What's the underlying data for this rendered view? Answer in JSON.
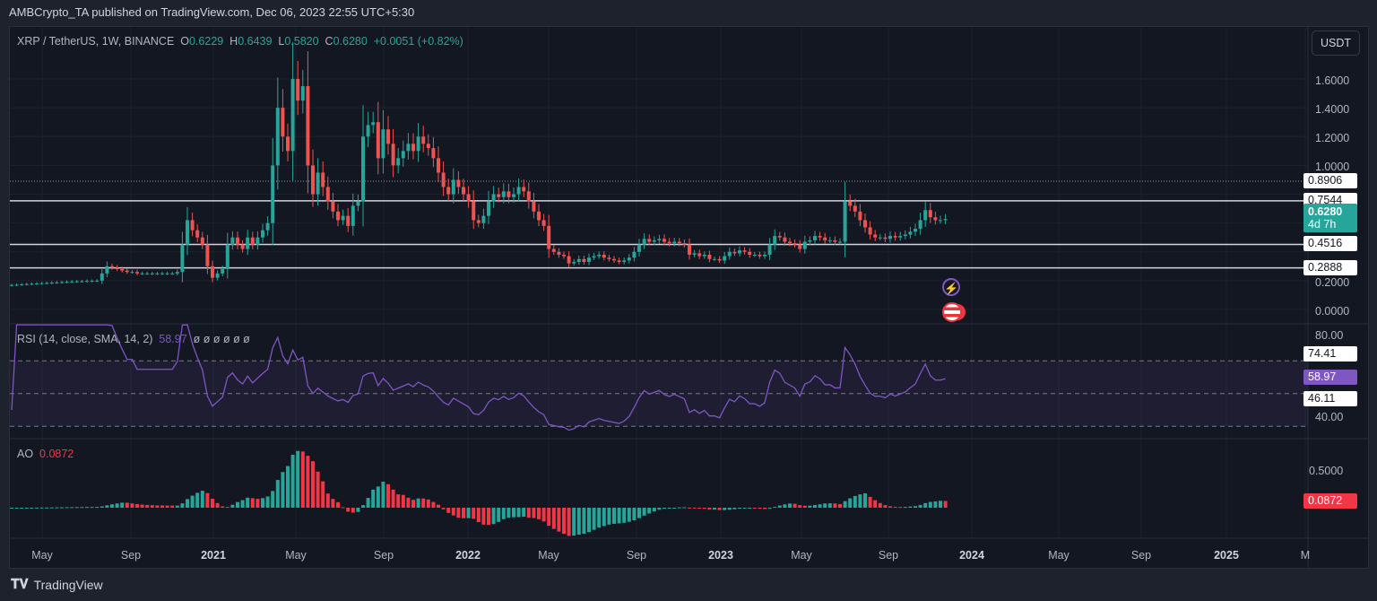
{
  "header": {
    "published": "AMBCrypto_TA published on TradingView.com, Dec 06, 2023 22:55 UTC+5:30"
  },
  "symbol": {
    "name": "XRP / TetherUS, 1W, BINANCE",
    "o_label": "O",
    "o": "0.6229",
    "h_label": "H",
    "h": "0.6439",
    "l_label": "L",
    "l": "0.5820",
    "c_label": "C",
    "c": "0.6280",
    "change": "+0.0051 (+0.82%)"
  },
  "currency_button": "USDT",
  "price_axis": {
    "ticks": [
      "1.6000",
      "1.4000",
      "1.2000",
      "1.0000",
      "0.2000",
      "0.0000"
    ],
    "tick_values": [
      1.6,
      1.4,
      1.2,
      1.0,
      0.2,
      0.0
    ]
  },
  "levels": [
    {
      "value": 0.8906,
      "label": "0.8906",
      "style": "dotted"
    },
    {
      "value": 0.7544,
      "label": "0.7544",
      "style": "solid"
    },
    {
      "value": 0.4516,
      "label": "0.4516",
      "style": "solid"
    },
    {
      "value": 0.2888,
      "label": "0.2888",
      "style": "solid"
    }
  ],
  "last_price": {
    "value": 0.628,
    "label": "0.6280",
    "countdown": "4d 7h"
  },
  "rsi": {
    "legend": "RSI (14, close, SMA, 14, 2)",
    "value": "58.97",
    "nulls": "ø ø ø ø ø ø",
    "ticks": [
      "80.00",
      "40.00"
    ],
    "band_top_label": "74.41",
    "band_bottom_label": "46.11"
  },
  "ao": {
    "legend": "AO",
    "value": "0.0872",
    "ticks": [
      "0.5000",
      "0.0000"
    ]
  },
  "time_axis": [
    "May",
    "Sep",
    "2021",
    "May",
    "Sep",
    "2022",
    "May",
    "Sep",
    "2023",
    "May",
    "Sep",
    "2024",
    "May",
    "Sep",
    "2025",
    "M"
  ],
  "footer": {
    "brand": "TradingView"
  },
  "colors": {
    "up": "#26a69a",
    "down": "#ef5350",
    "rsi": "#7e57c2",
    "ao_red": "#f23645"
  },
  "chart_data": {
    "type": "candlestick",
    "interval": "1W",
    "closes": [
      0.17,
      0.172,
      0.174,
      0.176,
      0.178,
      0.18,
      0.182,
      0.184,
      0.186,
      0.188,
      0.19,
      0.192,
      0.194,
      0.195,
      0.196,
      0.198,
      0.199,
      0.2,
      0.25,
      0.3,
      0.29,
      0.28,
      0.27,
      0.26,
      0.26,
      0.25,
      0.25,
      0.25,
      0.25,
      0.25,
      0.25,
      0.25,
      0.25,
      0.26,
      0.45,
      0.62,
      0.55,
      0.5,
      0.45,
      0.3,
      0.22,
      0.25,
      0.28,
      0.45,
      0.5,
      0.45,
      0.42,
      0.5,
      0.45,
      0.5,
      0.55,
      0.6,
      1.0,
      1.4,
      1.2,
      1.1,
      1.6,
      1.45,
      1.55,
      1.0,
      0.8,
      0.95,
      0.85,
      0.75,
      0.68,
      0.62,
      0.65,
      0.58,
      0.72,
      0.75,
      1.2,
      1.28,
      1.3,
      1.05,
      1.25,
      1.15,
      1.0,
      1.05,
      1.1,
      1.15,
      1.1,
      1.2,
      1.15,
      1.12,
      1.05,
      0.95,
      0.85,
      0.8,
      0.9,
      0.85,
      0.8,
      0.75,
      0.62,
      0.6,
      0.65,
      0.75,
      0.8,
      0.78,
      0.82,
      0.78,
      0.8,
      0.85,
      0.82,
      0.75,
      0.68,
      0.62,
      0.58,
      0.42,
      0.4,
      0.38,
      0.37,
      0.32,
      0.33,
      0.35,
      0.33,
      0.36,
      0.37,
      0.38,
      0.36,
      0.35,
      0.34,
      0.33,
      0.34,
      0.36,
      0.4,
      0.45,
      0.49,
      0.47,
      0.48,
      0.49,
      0.47,
      0.46,
      0.47,
      0.46,
      0.45,
      0.38,
      0.39,
      0.37,
      0.38,
      0.35,
      0.35,
      0.34,
      0.37,
      0.4,
      0.39,
      0.41,
      0.4,
      0.38,
      0.38,
      0.37,
      0.38,
      0.45,
      0.51,
      0.5,
      0.47,
      0.46,
      0.45,
      0.42,
      0.47,
      0.48,
      0.51,
      0.5,
      0.48,
      0.48,
      0.47,
      0.47,
      0.75,
      0.72,
      0.68,
      0.62,
      0.57,
      0.52,
      0.5,
      0.5,
      0.49,
      0.51,
      0.5,
      0.51,
      0.52,
      0.54,
      0.56,
      0.62,
      0.69,
      0.64,
      0.62,
      0.62,
      0.628
    ],
    "ylim": [
      0,
      1.75
    ]
  }
}
